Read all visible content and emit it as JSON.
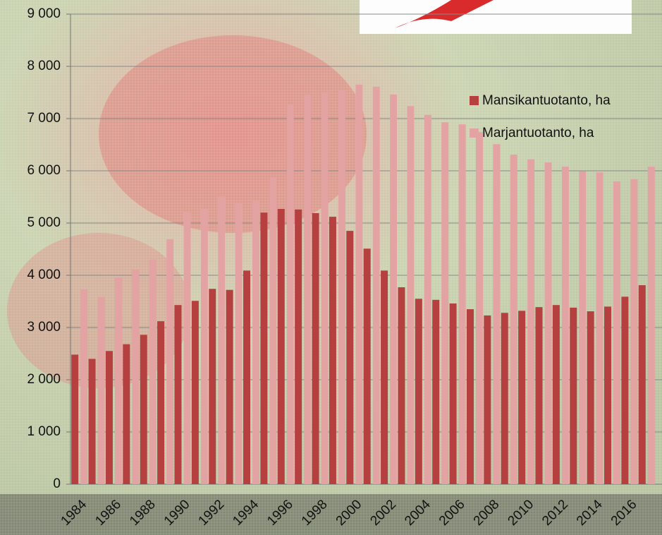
{
  "chart_data": {
    "type": "bar",
    "categories": [
      "1984",
      null,
      "1986",
      null,
      "1988",
      null,
      "1990",
      null,
      "1992",
      null,
      "1994",
      null,
      "1996",
      null,
      "1998",
      null,
      "2000",
      null,
      "2002",
      null,
      "2004",
      null,
      "2006",
      null,
      "2008",
      null,
      "2010",
      null,
      "2012",
      null,
      "2014",
      null,
      "2016",
      null
    ],
    "series": [
      {
        "name": "Mansikantuotanto, ha",
        "color": "#b5403f",
        "values": [
          2480,
          2400,
          2550,
          2680,
          2860,
          3120,
          3430,
          3510,
          3740,
          3720,
          4090,
          5200,
          5270,
          5260,
          5190,
          5120,
          4850,
          4510,
          4090,
          3770,
          3550,
          3530,
          3460,
          3350,
          3230,
          3280,
          3320,
          3390,
          3430,
          3380,
          3310,
          3400,
          3590,
          3810
        ]
      },
      {
        "name": "Marjantuotanto, ha",
        "color": "#e4a3a3",
        "values": [
          3730,
          3590,
          3960,
          4110,
          4300,
          4690,
          5200,
          5280,
          5510,
          5390,
          5420,
          5880,
          7280,
          7460,
          7510,
          7550,
          7650,
          7610,
          7460,
          7240,
          7070,
          6930,
          6890,
          6740,
          6510,
          6310,
          6220,
          6160,
          6080,
          5990,
          5970,
          5800,
          5840,
          6080
        ]
      }
    ],
    "ylim": [
      0,
      9000
    ],
    "yticks": [
      0,
      {
        "value": 1000,
        "label": "1 000"
      },
      {
        "value": 2000,
        "label": "2 000"
      },
      {
        "value": 3000,
        "label": "3 000"
      },
      {
        "value": 4000,
        "label": "4 000"
      },
      {
        "value": 5000,
        "label": "5 000"
      },
      {
        "value": 6000,
        "label": "6 000"
      },
      {
        "value": 7000,
        "label": "7 000"
      },
      {
        "value": 8000,
        "label": "8 000"
      },
      {
        "value": 9000,
        "label": "9 000"
      }
    ],
    "grid": true,
    "legend": "right"
  }
}
